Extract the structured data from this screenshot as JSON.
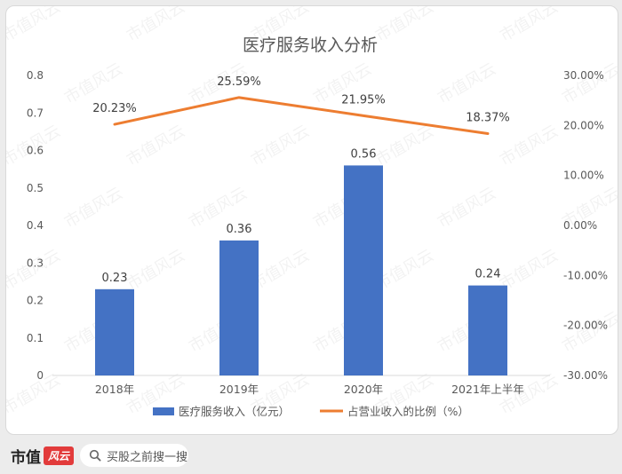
{
  "chart_data": {
    "type": "bar+line",
    "title": "医疗服务收入分析",
    "categories": [
      "2018年",
      "2019年",
      "2020年",
      "2021年上半年"
    ],
    "series": [
      {
        "name": "医疗服务收入（亿元）",
        "type": "bar",
        "axis": "left",
        "values": [
          0.23,
          0.36,
          0.56,
          0.24
        ],
        "labels": [
          "0.23",
          "0.36",
          "0.56",
          "0.24"
        ]
      },
      {
        "name": "占营业收入的比例（%）",
        "type": "line",
        "axis": "right",
        "values": [
          20.23,
          25.59,
          21.95,
          18.37
        ],
        "labels": [
          "20.23%",
          "25.59%",
          "21.95%",
          "18.37%"
        ]
      }
    ],
    "y_left": {
      "range": [
        0,
        0.8
      ],
      "ticks": [
        0,
        0.1,
        0.2,
        0.3,
        0.4,
        0.5,
        0.6,
        0.7,
        0.8
      ],
      "tick_labels": [
        "0",
        "0.1",
        "0.2",
        "0.3",
        "0.4",
        "0.5",
        "0.6",
        "0.7",
        "0.8"
      ]
    },
    "y_right": {
      "range": [
        -30,
        30
      ],
      "ticks": [
        -30,
        -20,
        -10,
        0,
        10,
        20,
        30
      ],
      "tick_labels": [
        "-30.00%",
        "-20.00%",
        "-10.00%",
        "0.00%",
        "10.00%",
        "20.00%",
        "30.00%"
      ]
    },
    "grid": false,
    "legend_position": "bottom",
    "colors": {
      "bar": "#4472c4",
      "line": "#ed7d31"
    }
  },
  "watermark": "市值风云",
  "footer": {
    "brand": "市值",
    "brand_mark": "风云",
    "search_icon": "search-icon",
    "search_label": "买股之前搜一搜"
  }
}
